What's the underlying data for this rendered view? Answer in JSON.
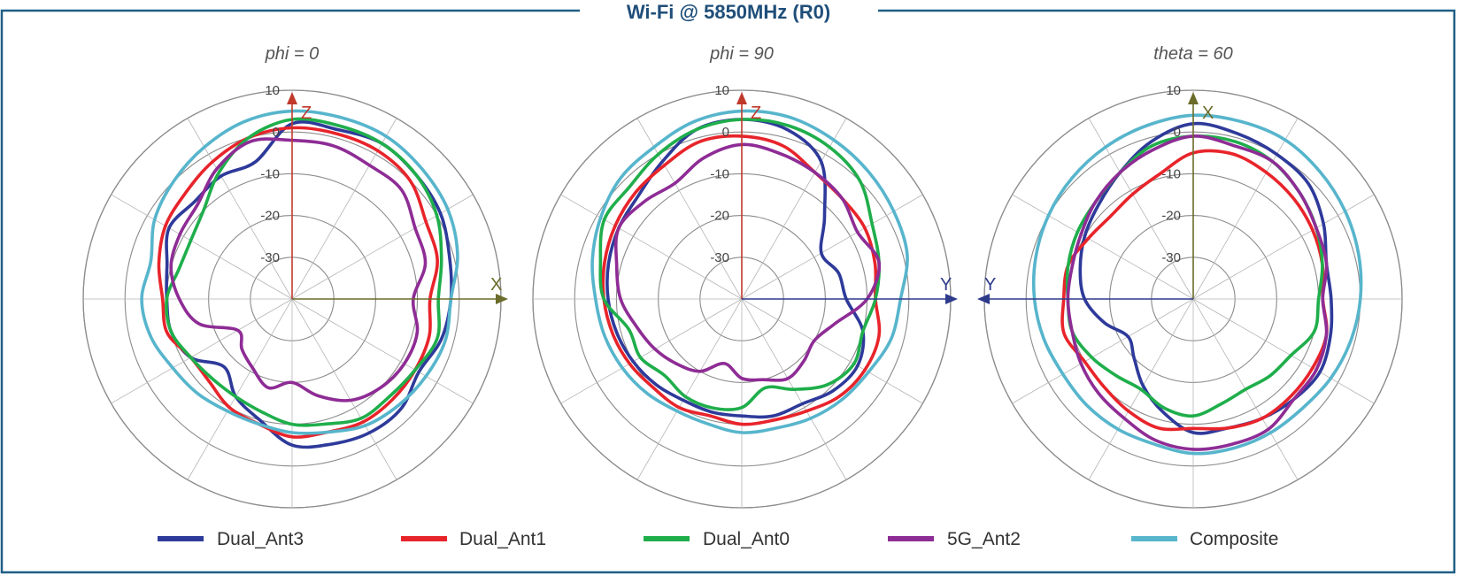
{
  "header": {
    "title": "Wi-Fi @ 5850MHz (R0)"
  },
  "colors": {
    "frame": "#1f5f86",
    "title": "#1f4e79",
    "grid": "#b5b5b5",
    "ring": "#8c8c8c"
  },
  "legend": [
    {
      "name": "Dual_Ant3",
      "color": "#2e3a9a"
    },
    {
      "name": "Dual_Ant1",
      "color": "#e8242b"
    },
    {
      "name": "Dual_Ant0",
      "color": "#1fae4b"
    },
    {
      "name": "5G_Ant2",
      "color": "#8e2c95"
    },
    {
      "name": "Composite",
      "color": "#57b5cc"
    }
  ],
  "chart_data": [
    {
      "type": "polar",
      "title": "phi = 0",
      "r_ticks": [
        "10",
        "0",
        "-10",
        "-20",
        "-30"
      ],
      "r_values": [
        10,
        0,
        -10,
        -20,
        -30
      ],
      "rlim": [
        -40,
        10
      ],
      "grid": true,
      "axes": {
        "up": {
          "label": "Z",
          "color": "#c0392b"
        },
        "right": {
          "label": "X",
          "color": "#6b6b2a"
        }
      },
      "angle_step_deg": 30,
      "series": [
        {
          "name": "Dual_Ant3",
          "color": "#2e3a9a",
          "values": [
            2,
            2,
            3,
            2,
            1,
            -1,
            -2,
            -3,
            -5,
            -3,
            -3,
            -4,
            -5,
            -10,
            -13,
            -17,
            -12,
            -10,
            -10,
            -9,
            -6,
            -7,
            -6,
            -6
          ]
        },
        {
          "name": "Dual_Ant1",
          "color": "#e8242b",
          "values": [
            1,
            1,
            1,
            0,
            -3,
            -4,
            -7,
            -6,
            -6,
            -6,
            -6,
            -7,
            -7,
            -9,
            -10,
            -12,
            -12,
            -9,
            -9,
            -7,
            -5,
            -4,
            -2,
            0
          ]
        },
        {
          "name": "Dual_Ant0",
          "color": "#1fae4b",
          "values": [
            3,
            3,
            3,
            2,
            0,
            -3,
            -5,
            -4,
            -6,
            -7,
            -7,
            -9,
            -10,
            -12,
            -13,
            -13,
            -12,
            -10,
            -10,
            -12,
            -12,
            -10,
            -5,
            0
          ]
        },
        {
          "name": "5G_Ant2",
          "color": "#8e2c95",
          "values": [
            -2,
            -2,
            -3,
            -3,
            -6,
            -7,
            -11,
            -9,
            -9,
            -10,
            -12,
            -16,
            -20,
            -18,
            -21,
            -23,
            -25,
            -17,
            -13,
            -10,
            -9,
            -8,
            -4,
            -1
          ]
        },
        {
          "name": "Composite",
          "color": "#57b5cc",
          "values": [
            5,
            5,
            5,
            4,
            3,
            1,
            -2,
            -2,
            -3,
            -4,
            -5,
            -7,
            -8,
            -9,
            -9,
            -8,
            -7,
            -5,
            -4,
            -5,
            -2,
            0,
            2,
            4
          ]
        }
      ]
    },
    {
      "type": "polar",
      "title": "phi = 90",
      "r_ticks": [
        "10",
        "0",
        "-10",
        "-20",
        "-30"
      ],
      "r_values": [
        10,
        0,
        -10,
        -20,
        -30
      ],
      "rlim": [
        -40,
        10
      ],
      "grid": true,
      "axes": {
        "up": {
          "label": "Z",
          "color": "#c0392b"
        },
        "right": {
          "label": "Y",
          "color": "#2e3a8a"
        }
      },
      "angle_step_deg": 30,
      "series": [
        {
          "name": "Dual_Ant3",
          "color": "#2e3a9a",
          "values": [
            3,
            2,
            -2,
            -12,
            -18,
            -16,
            -15,
            -10,
            -8,
            -9,
            -11,
            -11,
            -12,
            -12,
            -12,
            -11,
            -10,
            -9,
            -8,
            -7,
            -6,
            -5,
            -2,
            2
          ]
        },
        {
          "name": "Dual_Ant1",
          "color": "#e8242b",
          "values": [
            -1,
            -2,
            -5,
            -6,
            -6,
            -7,
            -8,
            -6,
            -6,
            -7,
            -9,
            -10,
            -10,
            -11,
            -10,
            -10,
            -9,
            -8,
            -7,
            -6,
            -5,
            -4,
            -3,
            -1
          ]
        },
        {
          "name": "Dual_Ant0",
          "color": "#1fae4b",
          "values": [
            3,
            3,
            2,
            0,
            -4,
            -6,
            -8,
            -10,
            -9,
            -11,
            -15,
            -18,
            -14,
            -13,
            -13,
            -14,
            -12,
            -12,
            -7,
            -5,
            -2,
            -2,
            0,
            2
          ]
        },
        {
          "name": "5G_Ant2",
          "color": "#8e2c95",
          "values": [
            -3,
            -4,
            -5,
            -6,
            -8,
            -6,
            -10,
            -17,
            -20,
            -19,
            -18,
            -20,
            -21,
            -24,
            -20,
            -18,
            -16,
            -14,
            -11,
            -9,
            -6,
            -7,
            -8,
            -5
          ]
        },
        {
          "name": "Composite",
          "color": "#57b5cc",
          "values": [
            5,
            5,
            4,
            3,
            2,
            1,
            -2,
            -3,
            -5,
            -6,
            -7,
            -8,
            -8,
            -9,
            -9,
            -8,
            -7,
            -6,
            -5,
            -3,
            -1,
            1,
            2,
            4
          ]
        }
      ]
    },
    {
      "type": "polar",
      "title": "theta = 60",
      "r_ticks": [
        "10",
        "0",
        "-10",
        "-20",
        "-30"
      ],
      "r_values": [
        10,
        0,
        -10,
        -20,
        -30
      ],
      "rlim": [
        -40,
        10
      ],
      "grid": true,
      "axes": {
        "up": {
          "label": "X",
          "color": "#6b6b2a"
        },
        "left": {
          "label": "Y",
          "color": "#2e3a8a"
        }
      },
      "angle_step_deg": 30,
      "series": [
        {
          "name": "Dual_Ant3",
          "color": "#2e3a9a",
          "values": [
            2,
            1,
            0,
            -1,
            -4,
            -7,
            -7,
            -6,
            -5,
            -6,
            -7,
            -8,
            -8,
            -12,
            -16,
            -20,
            -22,
            -18,
            -14,
            -12,
            -10,
            -8,
            -5,
            -1
          ]
        },
        {
          "name": "Dual_Ant1",
          "color": "#e8242b",
          "values": [
            -5,
            -4,
            -5,
            -6,
            -7,
            -8,
            -9,
            -7,
            -7,
            -7,
            -7,
            -8,
            -9,
            -8,
            -9,
            -10,
            -10,
            -8,
            -9,
            -9,
            -11,
            -12,
            -11,
            -9
          ]
        },
        {
          "name": "Dual_Ant0",
          "color": "#1fae4b",
          "values": [
            -1,
            -1,
            -2,
            -4,
            -6,
            -8,
            -10,
            -10,
            -13,
            -14,
            -15,
            -14,
            -12,
            -13,
            -15,
            -14,
            -12,
            -10,
            -10,
            -9,
            -8,
            -7,
            -5,
            -2
          ]
        },
        {
          "name": "5G_Ant2",
          "color": "#8e2c95",
          "values": [
            -1,
            -2,
            -2,
            -4,
            -6,
            -7,
            -9,
            -7,
            -6,
            -6,
            -4,
            -4,
            -4,
            -5,
            -7,
            -8,
            -9,
            -10,
            -10,
            -10,
            -9,
            -7,
            -5,
            -3
          ]
        },
        {
          "name": "Composite",
          "color": "#57b5cc",
          "values": [
            4,
            4,
            4,
            3,
            2,
            1,
            0,
            -1,
            -2,
            -3,
            -3,
            -3,
            -3,
            -4,
            -4,
            -4,
            -4,
            -3,
            -2,
            -1,
            0,
            1,
            2,
            3
          ]
        }
      ]
    }
  ]
}
